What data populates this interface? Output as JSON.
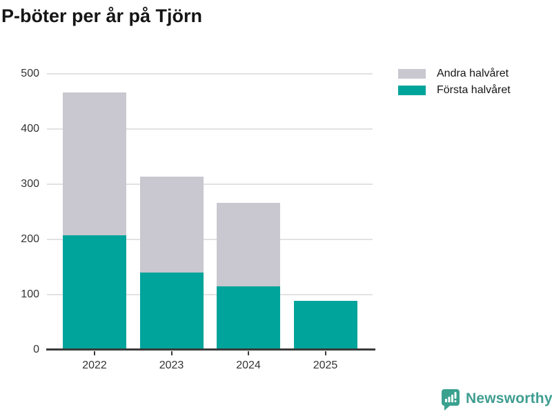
{
  "page": {
    "background": "#ffffff"
  },
  "header": {
    "title": "P-böter per år på Tjörn"
  },
  "legend": {
    "items": [
      {
        "label": "Andra halvåret",
        "color": "#c9c7cf"
      },
      {
        "label": "Första halvåret",
        "color": "#00a49b"
      }
    ]
  },
  "chart_data": {
    "type": "bar",
    "stacked": true,
    "title": "P-böter per år på Tjörn",
    "categories": [
      "2022",
      "2023",
      "2024",
      "2025"
    ],
    "series": [
      {
        "name": "Första halvåret",
        "color": "#00a49b",
        "values": [
          207,
          140,
          115,
          89
        ]
      },
      {
        "name": "Andra halvåret",
        "color": "#c9c7cf",
        "values": [
          259,
          174,
          151,
          0
        ]
      }
    ],
    "totals": [
      466,
      314,
      266,
      89
    ],
    "xlabel": "",
    "ylabel": "",
    "ylim": [
      0,
      500
    ],
    "yticks": [
      0,
      100,
      200,
      300,
      400,
      500
    ],
    "grid": true,
    "legend_position": "top-right",
    "axis_color": "#3a3a3a",
    "gridline_color": "#e2e2e4",
    "tick_label_color": "#333333"
  },
  "branding": {
    "logo_text": "Newsworthy",
    "logo_color": "#3f9d90",
    "logo_icon": "newsworthy-speech-bubble-chart-icon"
  }
}
